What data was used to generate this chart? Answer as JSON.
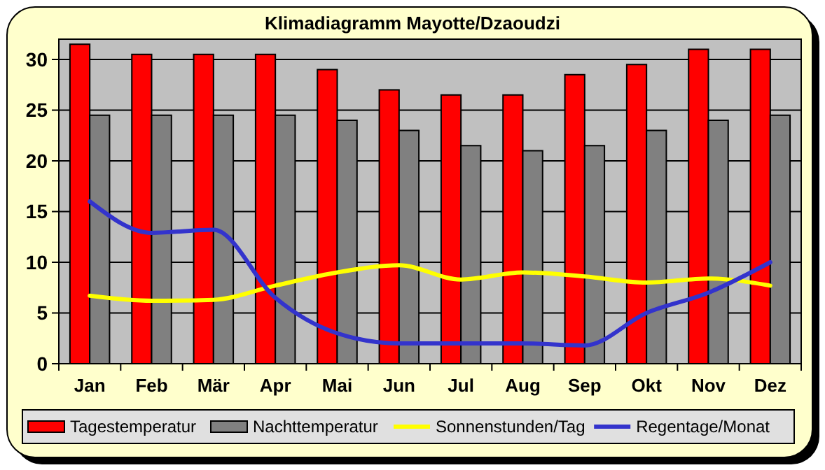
{
  "chart_data": {
    "type": "bar",
    "title": "Klimadiagramm Mayotte/Dzaoudzi",
    "categories": [
      "Jan",
      "Feb",
      "Mär",
      "Apr",
      "Mai",
      "Jun",
      "Jul",
      "Aug",
      "Sep",
      "Okt",
      "Nov",
      "Dez"
    ],
    "series": [
      {
        "name": "Tagestemperatur",
        "color": "#ff0000",
        "values": [
          31.5,
          30.5,
          30.5,
          30.5,
          29,
          27,
          26.5,
          26.5,
          28.5,
          29.5,
          31,
          31
        ]
      },
      {
        "name": "Nachttemperatur",
        "color": "#808080",
        "values": [
          24.5,
          24.5,
          24.5,
          24.5,
          24,
          23,
          21.5,
          21,
          21.5,
          23,
          24,
          24.5
        ]
      },
      {
        "name": "Sonnenstunden/Tag",
        "type": "line",
        "color": "#ffff00",
        "values": [
          6.7,
          6.2,
          6.3,
          7.7,
          9,
          9.7,
          8.3,
          9,
          8.6,
          8,
          8.4,
          7.7
        ]
      },
      {
        "name": "Regentage/Monat",
        "type": "line",
        "color": "#3333cc",
        "values": [
          16,
          12.9,
          13.2,
          6.5,
          3,
          2,
          2,
          2,
          1.8,
          5,
          7,
          10
        ]
      }
    ],
    "ylim": [
      0,
      32
    ],
    "yticks": [
      0,
      5,
      10,
      15,
      20,
      25,
      30
    ],
    "grid": "y",
    "legend": "bottom"
  }
}
